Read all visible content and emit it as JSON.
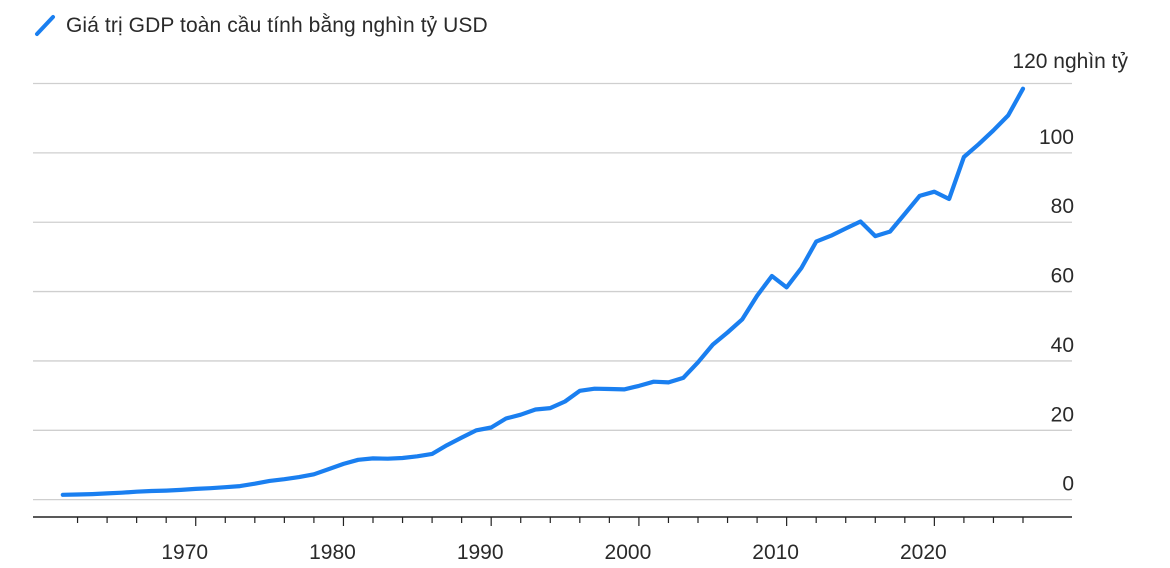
{
  "chart_data": {
    "type": "line",
    "legend": {
      "position": "top-left"
    },
    "series": [
      {
        "name": "Giá trị GDP toàn cầu tính bằng nghìn tỷ USD",
        "color": "#1a7ff0",
        "x": [
          1961,
          1962,
          1963,
          1964,
          1965,
          1966,
          1967,
          1968,
          1969,
          1970,
          1971,
          1972,
          1973,
          1974,
          1975,
          1976,
          1977,
          1978,
          1979,
          1980,
          1981,
          1982,
          1983,
          1984,
          1985,
          1986,
          1987,
          1988,
          1989,
          1990,
          1991,
          1992,
          1993,
          1994,
          1995,
          1996,
          1997,
          1998,
          1999,
          2000,
          2001,
          2002,
          2003,
          2004,
          2005,
          2006,
          2007,
          2008,
          2009,
          2010,
          2011,
          2012,
          2013,
          2014,
          2015,
          2016,
          2017,
          2018,
          2019,
          2020,
          2021,
          2022,
          2023,
          2024,
          2025,
          2026
        ],
        "values": [
          1.4,
          1.5,
          1.6,
          1.8,
          2.0,
          2.3,
          2.5,
          2.6,
          2.8,
          3.1,
          3.3,
          3.6,
          3.9,
          4.6,
          5.4,
          5.9,
          6.5,
          7.3,
          8.8,
          10.3,
          11.5,
          11.9,
          11.8,
          12.0,
          12.5,
          13.2,
          15.7,
          17.9,
          20.0,
          20.8,
          23.4,
          24.5,
          26.0,
          26.4,
          28.3,
          31.4,
          32.0,
          31.9,
          31.8,
          32.8,
          34.0,
          33.8,
          35.1,
          39.6,
          44.7,
          48.2,
          52.0,
          58.8,
          64.5,
          61.2,
          66.8,
          74.4,
          76.1,
          78.2,
          80.2,
          76.0,
          77.3,
          82.4,
          87.6,
          88.8,
          86.7,
          98.8,
          102.5,
          106.5,
          110.8,
          118.5
        ]
      }
    ],
    "end_label": "120 nghìn tỷ",
    "xlim": [
      1960,
      2026
    ],
    "ylim": [
      -5,
      120
    ],
    "x_ticks": [
      1970,
      1980,
      1990,
      2000,
      2010,
      2020
    ],
    "x_tick_labels": [
      "1970",
      "1980",
      "1990",
      "2000",
      "2010",
      "2020"
    ],
    "y_ticks": [
      0,
      20,
      40,
      60,
      80,
      100
    ],
    "y_tick_labels": [
      "0",
      "20",
      "40",
      "60",
      "80",
      "100"
    ],
    "grid": true
  }
}
